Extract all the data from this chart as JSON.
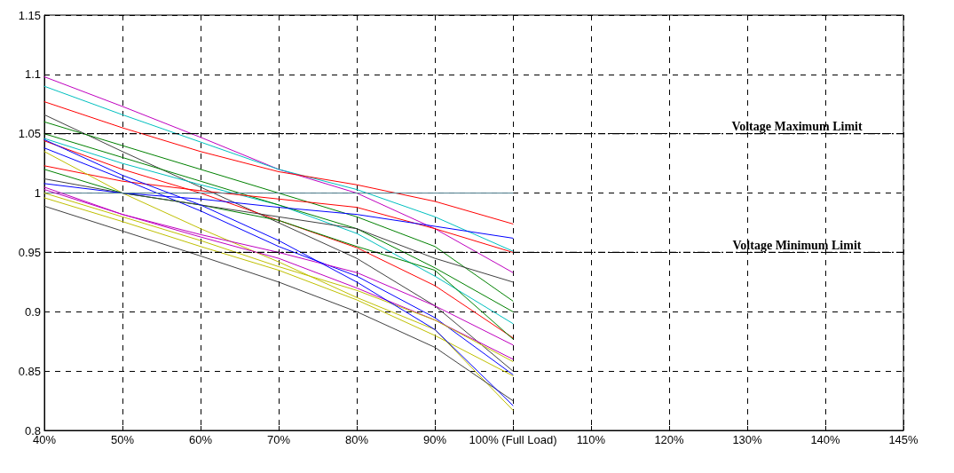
{
  "chart_data": {
    "type": "line",
    "categories": [
      "40%",
      "50%",
      "60%",
      "70%",
      "80%",
      "90%",
      "100% (Full Load)",
      "110%",
      "120%",
      "130%",
      "140%",
      "145%"
    ],
    "ylim": [
      0.8,
      1.15
    ],
    "yticks": [
      0.8,
      0.85,
      0.9,
      0.95,
      1,
      1.05,
      1.1,
      1.15
    ],
    "grid": true,
    "marker": "none",
    "line_style": "solid",
    "series": [
      {
        "color": "#bf00bf",
        "values": [
          1.098,
          1.073,
          1.047,
          1.02,
          1.0,
          0.97,
          0.933,
          null,
          null,
          null,
          null,
          null
        ]
      },
      {
        "color": "#00bfbf",
        "values": [
          1.09,
          1.066,
          1.043,
          1.02,
          1.003,
          0.98,
          0.951,
          null,
          null,
          null,
          null,
          null
        ]
      },
      {
        "color": "#ff0000",
        "values": [
          1.077,
          1.055,
          1.035,
          1.018,
          1.007,
          0.993,
          0.974,
          null,
          null,
          null,
          null,
          null
        ]
      },
      {
        "color": "#404040",
        "values": [
          1.066,
          1.035,
          1.005,
          0.975,
          0.945,
          0.905,
          0.85,
          null,
          null,
          null,
          null,
          null
        ]
      },
      {
        "color": "#008000",
        "values": [
          1.06,
          1.04,
          1.02,
          1.0,
          0.98,
          0.955,
          0.909,
          null,
          null,
          null,
          null,
          null
        ]
      },
      {
        "color": "#00bfbf",
        "values": [
          1.046,
          1.025,
          1.007,
          0.99,
          0.966,
          0.93,
          0.89,
          null,
          null,
          null,
          null,
          null
        ]
      },
      {
        "color": "#008000",
        "values": [
          1.05,
          1.03,
          1.01,
          0.99,
          0.97,
          0.937,
          0.9,
          null,
          null,
          null,
          null,
          null
        ]
      },
      {
        "color": "#ff0000",
        "values": [
          1.044,
          1.02,
          1.0,
          0.977,
          0.954,
          0.922,
          0.878,
          null,
          null,
          null,
          null,
          null
        ]
      },
      {
        "color": "#ff0000",
        "values": [
          1.023,
          1.01,
          1.002,
          0.995,
          0.988,
          0.97,
          0.95,
          null,
          null,
          null,
          null,
          null
        ]
      },
      {
        "color": "#0000ff",
        "values": [
          1.038,
          1.012,
          0.985,
          0.955,
          0.93,
          0.895,
          0.847,
          null,
          null,
          null,
          null,
          null
        ]
      },
      {
        "color": "#bfbf00",
        "values": [
          1.035,
          1.0,
          0.97,
          0.942,
          0.912,
          0.885,
          0.817,
          null,
          null,
          null,
          null,
          null
        ]
      },
      {
        "color": "#008000",
        "values": [
          1.02,
          1.0,
          0.99,
          0.977,
          0.955,
          0.935,
          0.877,
          null,
          null,
          null,
          null,
          null
        ]
      },
      {
        "color": "#404040",
        "values": [
          1.012,
          1.0,
          0.99,
          0.98,
          0.97,
          0.945,
          0.925,
          null,
          null,
          null,
          null,
          null
        ]
      },
      {
        "color": "#0000ff",
        "values": [
          1.008,
          1.0,
          0.995,
          0.988,
          0.982,
          0.972,
          0.962,
          null,
          null,
          null,
          null,
          null
        ]
      },
      {
        "color": "#4f7f8f",
        "values": [
          1.0,
          1.0,
          1.0,
          1.0,
          1.0,
          1.0,
          1.0,
          null,
          null,
          null,
          null,
          null
        ]
      },
      {
        "color": "#bf00bf",
        "values": [
          1.005,
          0.982,
          0.965,
          0.95,
          0.933,
          0.905,
          0.872,
          null,
          null,
          null,
          null,
          null
        ]
      },
      {
        "color": "#bf00bf",
        "values": [
          1.003,
          0.982,
          0.963,
          0.945,
          0.92,
          0.893,
          0.86,
          null,
          null,
          null,
          null,
          null
        ]
      },
      {
        "color": "#bfbf00",
        "values": [
          1.0,
          0.98,
          0.96,
          0.938,
          0.918,
          0.893,
          0.858,
          null,
          null,
          null,
          null,
          null
        ]
      },
      {
        "color": "#bfbf00",
        "values": [
          0.996,
          0.976,
          0.955,
          0.935,
          0.91,
          0.88,
          0.846,
          null,
          null,
          null,
          null,
          null
        ]
      },
      {
        "color": "#404040",
        "values": [
          0.989,
          0.968,
          0.947,
          0.925,
          0.9,
          0.87,
          0.825,
          null,
          null,
          null,
          null,
          null
        ]
      },
      {
        "color": "#0000ff",
        "values": [
          1.045,
          1.015,
          0.99,
          0.96,
          0.925,
          0.885,
          0.821,
          null,
          null,
          null,
          null,
          null
        ]
      }
    ],
    "ref_lines": [
      {
        "axis": "y",
        "value": 1.05,
        "label": "Voltage Maximum Limit"
      },
      {
        "axis": "y",
        "value": 0.95,
        "label": "Voltage Minimum Limit"
      }
    ]
  }
}
